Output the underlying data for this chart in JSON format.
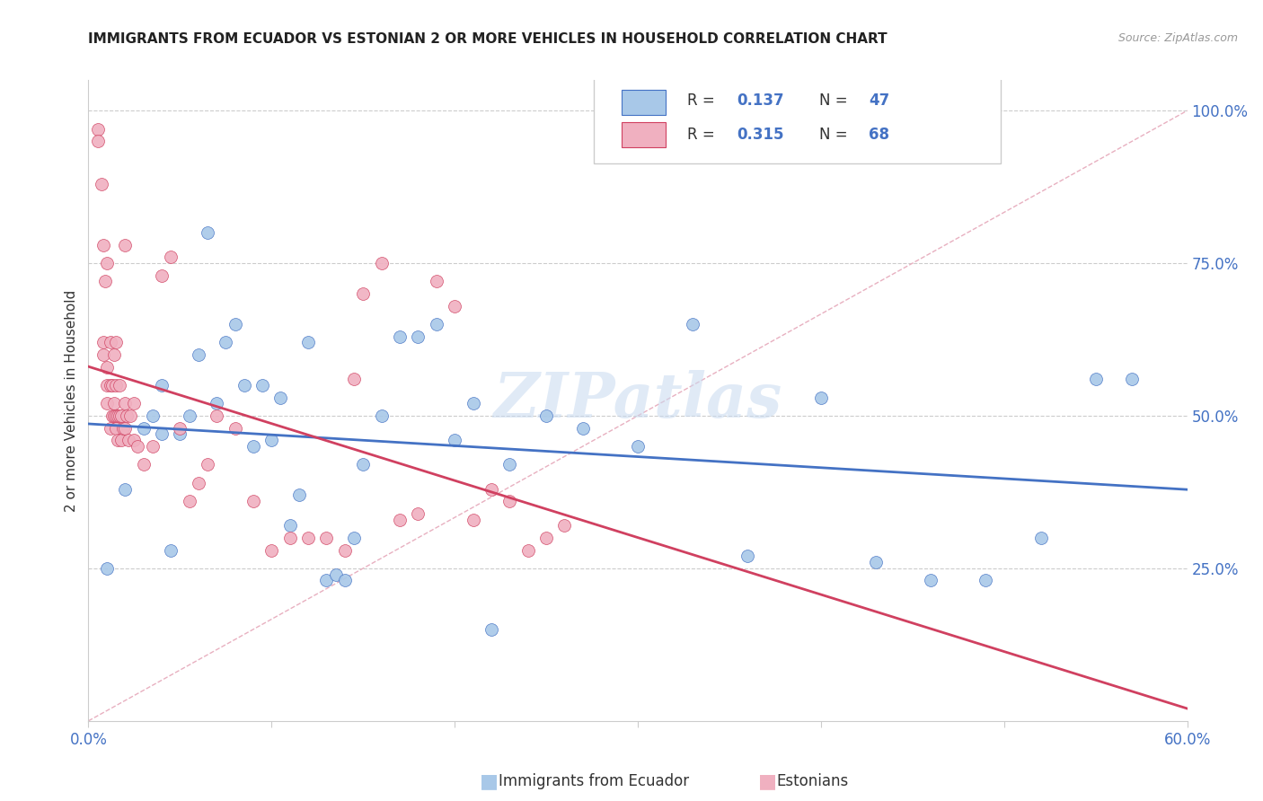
{
  "title": "IMMIGRANTS FROM ECUADOR VS ESTONIAN 2 OR MORE VEHICLES IN HOUSEHOLD CORRELATION CHART",
  "source": "Source: ZipAtlas.com",
  "ylabel": "2 or more Vehicles in Household",
  "xlim": [
    0.0,
    0.6
  ],
  "ylim": [
    0.0,
    1.05
  ],
  "color_blue": "#a8c8e8",
  "color_pink": "#f0b0c0",
  "color_blue_line": "#4472c4",
  "color_pink_line": "#d04060",
  "color_diag": "#d0d0d0",
  "watermark": "ZIPatlas",
  "legend_r1": "R = 0.137",
  "legend_n1": "N = 47",
  "legend_r2": "R = 0.315",
  "legend_n2": "N = 68",
  "blue_x": [
    0.01,
    0.02,
    0.03,
    0.035,
    0.04,
    0.04,
    0.045,
    0.05,
    0.055,
    0.06,
    0.065,
    0.07,
    0.075,
    0.08,
    0.085,
    0.09,
    0.095,
    0.1,
    0.105,
    0.11,
    0.115,
    0.12,
    0.13,
    0.135,
    0.14,
    0.145,
    0.15,
    0.16,
    0.17,
    0.18,
    0.19,
    0.2,
    0.21,
    0.22,
    0.23,
    0.25,
    0.27,
    0.3,
    0.33,
    0.36,
    0.4,
    0.43,
    0.46,
    0.49,
    0.52,
    0.55,
    0.57
  ],
  "blue_y": [
    0.25,
    0.38,
    0.48,
    0.5,
    0.47,
    0.55,
    0.28,
    0.47,
    0.5,
    0.6,
    0.8,
    0.52,
    0.62,
    0.65,
    0.55,
    0.45,
    0.55,
    0.46,
    0.53,
    0.32,
    0.37,
    0.62,
    0.23,
    0.24,
    0.23,
    0.3,
    0.42,
    0.5,
    0.63,
    0.63,
    0.65,
    0.46,
    0.52,
    0.15,
    0.42,
    0.5,
    0.48,
    0.45,
    0.65,
    0.27,
    0.53,
    0.26,
    0.23,
    0.23,
    0.3,
    0.56,
    0.56
  ],
  "pink_x": [
    0.005,
    0.005,
    0.007,
    0.008,
    0.008,
    0.008,
    0.009,
    0.01,
    0.01,
    0.01,
    0.01,
    0.012,
    0.012,
    0.012,
    0.013,
    0.013,
    0.014,
    0.014,
    0.014,
    0.015,
    0.015,
    0.015,
    0.015,
    0.016,
    0.016,
    0.017,
    0.017,
    0.018,
    0.018,
    0.019,
    0.02,
    0.02,
    0.02,
    0.021,
    0.022,
    0.023,
    0.025,
    0.025,
    0.027,
    0.03,
    0.035,
    0.04,
    0.045,
    0.05,
    0.055,
    0.06,
    0.065,
    0.07,
    0.08,
    0.09,
    0.1,
    0.11,
    0.12,
    0.13,
    0.14,
    0.145,
    0.15,
    0.16,
    0.17,
    0.18,
    0.19,
    0.2,
    0.21,
    0.22,
    0.23,
    0.24,
    0.25,
    0.26
  ],
  "pink_y": [
    0.97,
    0.95,
    0.88,
    0.6,
    0.62,
    0.78,
    0.72,
    0.52,
    0.55,
    0.58,
    0.75,
    0.48,
    0.55,
    0.62,
    0.5,
    0.55,
    0.5,
    0.52,
    0.6,
    0.48,
    0.5,
    0.55,
    0.62,
    0.46,
    0.5,
    0.5,
    0.55,
    0.46,
    0.5,
    0.48,
    0.48,
    0.52,
    0.78,
    0.5,
    0.46,
    0.5,
    0.46,
    0.52,
    0.45,
    0.42,
    0.45,
    0.73,
    0.76,
    0.48,
    0.36,
    0.39,
    0.42,
    0.5,
    0.48,
    0.36,
    0.28,
    0.3,
    0.3,
    0.3,
    0.28,
    0.56,
    0.7,
    0.75,
    0.33,
    0.34,
    0.72,
    0.68,
    0.33,
    0.38,
    0.36,
    0.28,
    0.3,
    0.32
  ]
}
